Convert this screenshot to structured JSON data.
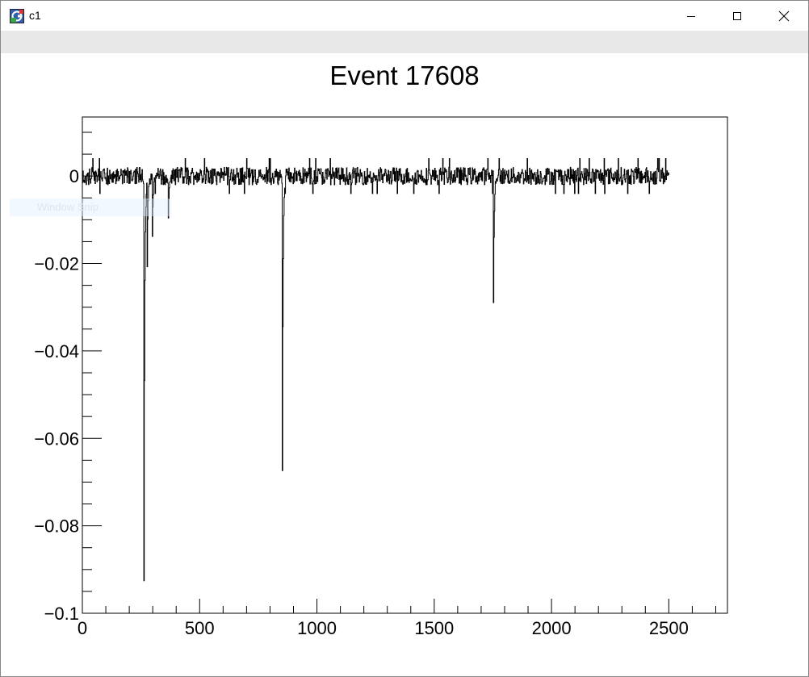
{
  "window": {
    "title": "c1",
    "icon": "root-app-icon",
    "controls": [
      "minimize-icon",
      "maximize-icon",
      "close-icon"
    ]
  },
  "overlay": {
    "label": "Window Snip"
  },
  "chart_data": {
    "type": "line",
    "title": "Event 17608",
    "xlabel": "",
    "ylabel": "",
    "xlim": [
      0,
      2750
    ],
    "ylim": [
      -0.1,
      0.0135
    ],
    "x_ticks": [
      0,
      500,
      1000,
      1500,
      2000,
      2500
    ],
    "x_tick_labels": [
      "0",
      "500",
      "1000",
      "1500",
      "2000",
      "2500"
    ],
    "y_ticks": [
      0,
      -0.02,
      -0.04,
      -0.06,
      -0.08,
      -0.1
    ],
    "y_tick_labels": [
      "0",
      "−0.02",
      "−0.04",
      "−0.06",
      "−0.08",
      "−0.1"
    ],
    "grid": false,
    "legend": "none",
    "line_color": "#000000",
    "series": [
      {
        "x_range": [
          0,
          2500
        ],
        "baseline": 0,
        "noise_amplitude": 0.002,
        "pulses": [
          {
            "x": 262,
            "min": -0.092
          },
          {
            "x": 276,
            "min": -0.02
          },
          {
            "x": 297,
            "min": -0.018
          },
          {
            "x": 365,
            "min": -0.014
          },
          {
            "x": 852,
            "min": -0.068
          },
          {
            "x": 1752,
            "min": -0.028
          }
        ]
      }
    ]
  }
}
